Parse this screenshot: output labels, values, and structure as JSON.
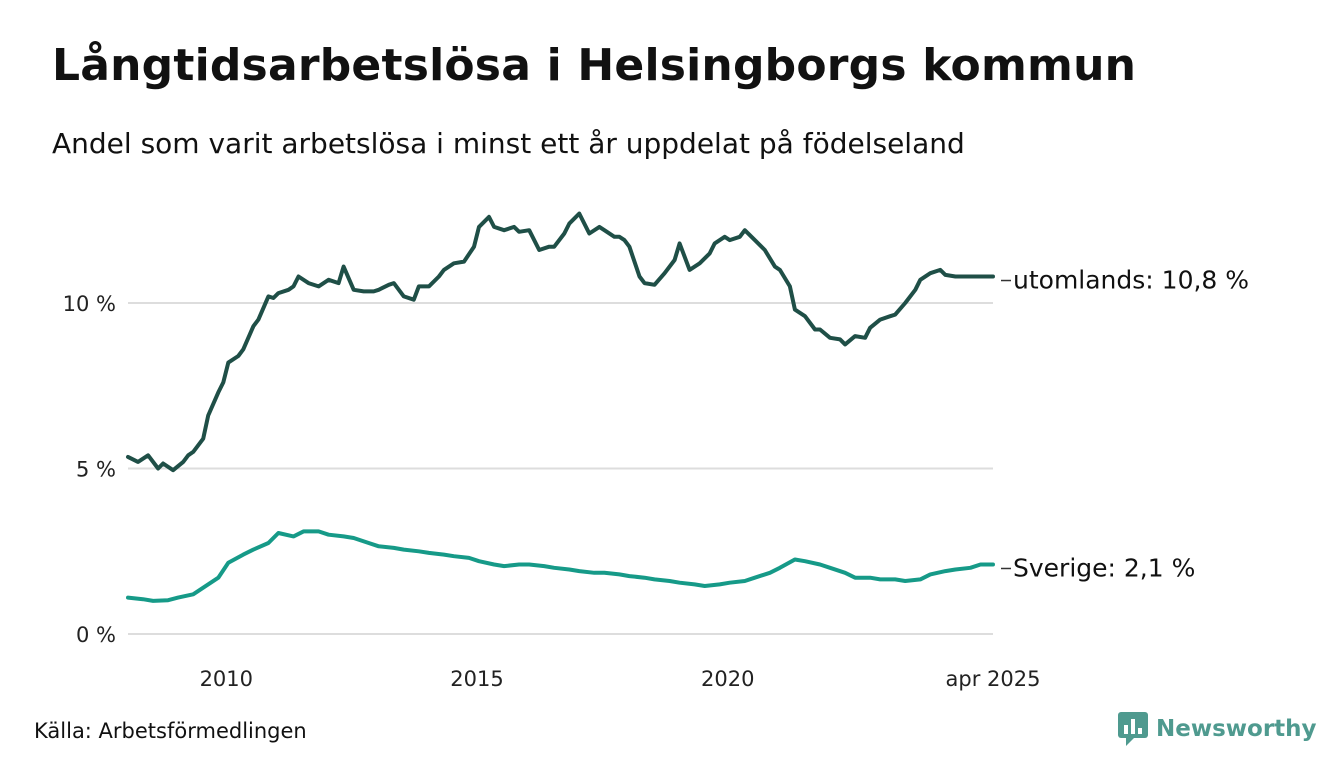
{
  "header": {
    "title": "Långtidsarbetslösa i Helsingborgs kommun",
    "subtitle": "Andel som varit arbetslösa i minst ett år uppdelat på födelseland"
  },
  "footer": {
    "source": "Källa: Arbetsförmedlingen",
    "brand": "Newsworthy",
    "brand_icon": "bar-chart-logo-icon"
  },
  "colors": {
    "utomlands": "#1f4f47",
    "sverige": "#169a88",
    "grid": "#dddddd",
    "brand": "#4f9a8f"
  },
  "chart_data": {
    "type": "line",
    "x_unit": "decimal year",
    "xlim": [
      2008.0,
      2025.25
    ],
    "ylim": [
      0,
      13
    ],
    "y_ticks": [
      0,
      5,
      10
    ],
    "y_tick_labels": [
      "0 %",
      "5 %",
      "10 %"
    ],
    "x_ticks": [
      2010,
      2015,
      2020,
      2025.25
    ],
    "x_tick_labels": [
      "2010",
      "2015",
      "2020",
      "apr 2025"
    ],
    "grid": true,
    "series": [
      {
        "key": "utomlands",
        "end_label": "utomlands: 10,8 %",
        "x": [
          2008.0,
          2008.2,
          2008.4,
          2008.6,
          2008.7,
          2008.9,
          2009.1,
          2009.2,
          2009.3,
          2009.5,
          2009.6,
          2009.8,
          2009.9,
          2010.0,
          2010.2,
          2010.3,
          2010.5,
          2010.6,
          2010.8,
          2010.9,
          2011.0,
          2011.2,
          2011.3,
          2011.4,
          2011.6,
          2011.8,
          2012.0,
          2012.2,
          2012.3,
          2012.5,
          2012.7,
          2012.9,
          2013.0,
          2013.2,
          2013.3,
          2013.5,
          2013.7,
          2013.8,
          2014.0,
          2014.2,
          2014.3,
          2014.5,
          2014.7,
          2014.9,
          2015.0,
          2015.2,
          2015.3,
          2015.5,
          2015.7,
          2015.8,
          2016.0,
          2016.2,
          2016.4,
          2016.5,
          2016.7,
          2016.8,
          2017.0,
          2017.2,
          2017.4,
          2017.5,
          2017.7,
          2017.8,
          2017.9,
          2018.0,
          2018.2,
          2018.3,
          2018.5,
          2018.7,
          2018.9,
          2019.0,
          2019.2,
          2019.4,
          2019.6,
          2019.7,
          2019.9,
          2020.0,
          2020.2,
          2020.3,
          2020.5,
          2020.7,
          2020.9,
          2021.0,
          2021.2,
          2021.3,
          2021.5,
          2021.7,
          2021.8,
          2022.0,
          2022.2,
          2022.3,
          2022.5,
          2022.7,
          2022.8,
          2023.0,
          2023.2,
          2023.3,
          2023.5,
          2023.7,
          2023.8,
          2024.0,
          2024.2,
          2024.3,
          2024.5,
          2024.7,
          2024.8,
          2025.0,
          2025.1,
          2025.25
        ],
        "values": [
          5.35,
          5.2,
          5.4,
          5.0,
          5.15,
          4.95,
          5.2,
          5.4,
          5.5,
          5.9,
          6.6,
          7.3,
          7.6,
          8.2,
          8.4,
          8.6,
          9.3,
          9.5,
          10.2,
          10.15,
          10.3,
          10.4,
          10.5,
          10.8,
          10.6,
          10.5,
          10.7,
          10.6,
          11.1,
          10.4,
          10.35,
          10.35,
          10.4,
          10.55,
          10.6,
          10.2,
          10.1,
          10.5,
          10.5,
          10.8,
          11.0,
          11.2,
          11.25,
          11.7,
          12.3,
          12.6,
          12.3,
          12.2,
          12.3,
          12.15,
          12.2,
          11.6,
          11.7,
          11.7,
          12.1,
          12.4,
          12.7,
          12.1,
          12.3,
          12.2,
          12.0,
          12.0,
          11.9,
          11.7,
          10.8,
          10.6,
          10.55,
          10.9,
          11.3,
          11.8,
          11.0,
          11.2,
          11.5,
          11.8,
          12.0,
          11.9,
          12.0,
          12.2,
          11.9,
          11.6,
          11.1,
          11.0,
          10.5,
          9.8,
          9.6,
          9.2,
          9.2,
          8.95,
          8.9,
          8.75,
          9.0,
          8.95,
          9.25,
          9.5,
          9.6,
          9.65,
          10.0,
          10.4,
          10.7,
          10.9,
          11.0,
          10.85,
          10.8,
          10.8,
          10.8,
          10.8,
          10.8,
          10.8
        ]
      },
      {
        "key": "sverige",
        "end_label": "Sverige:  2,1 %",
        "x": [
          2008.0,
          2008.3,
          2008.5,
          2008.8,
          2009.0,
          2009.3,
          2009.5,
          2009.8,
          2010.0,
          2010.3,
          2010.5,
          2010.8,
          2011.0,
          2011.3,
          2011.5,
          2011.8,
          2012.0,
          2012.3,
          2012.5,
          2012.8,
          2013.0,
          2013.3,
          2013.5,
          2013.8,
          2014.0,
          2014.3,
          2014.5,
          2014.8,
          2015.0,
          2015.3,
          2015.5,
          2015.8,
          2016.0,
          2016.3,
          2016.5,
          2016.8,
          2017.0,
          2017.3,
          2017.5,
          2017.8,
          2018.0,
          2018.3,
          2018.5,
          2018.8,
          2019.0,
          2019.3,
          2019.5,
          2019.8,
          2020.0,
          2020.3,
          2020.5,
          2020.8,
          2021.0,
          2021.3,
          2021.5,
          2021.8,
          2022.0,
          2022.3,
          2022.5,
          2022.8,
          2023.0,
          2023.3,
          2023.5,
          2023.8,
          2024.0,
          2024.3,
          2024.5,
          2024.8,
          2025.0,
          2025.25
        ],
        "values": [
          1.1,
          1.05,
          1.0,
          1.02,
          1.1,
          1.2,
          1.4,
          1.7,
          2.15,
          2.4,
          2.55,
          2.75,
          3.05,
          2.95,
          3.1,
          3.1,
          3.0,
          2.95,
          2.9,
          2.75,
          2.65,
          2.6,
          2.55,
          2.5,
          2.45,
          2.4,
          2.35,
          2.3,
          2.2,
          2.1,
          2.05,
          2.1,
          2.1,
          2.05,
          2.0,
          1.95,
          1.9,
          1.85,
          1.85,
          1.8,
          1.75,
          1.7,
          1.65,
          1.6,
          1.55,
          1.5,
          1.45,
          1.5,
          1.55,
          1.6,
          1.7,
          1.85,
          2.0,
          2.25,
          2.2,
          2.1,
          2.0,
          1.85,
          1.7,
          1.7,
          1.65,
          1.65,
          1.6,
          1.65,
          1.8,
          1.9,
          1.95,
          2.0,
          2.1,
          2.1
        ]
      }
    ]
  }
}
